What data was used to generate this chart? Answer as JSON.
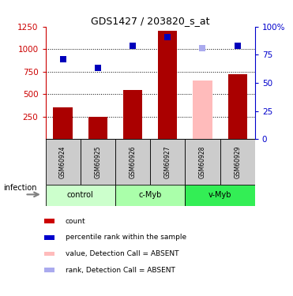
{
  "title": "GDS1427 / 203820_s_at",
  "samples": [
    "GSM60924",
    "GSM60925",
    "GSM60926",
    "GSM60927",
    "GSM60928",
    "GSM60929"
  ],
  "bar_values": [
    355,
    245,
    545,
    1200,
    650,
    720
  ],
  "bar_colors": [
    "#aa0000",
    "#aa0000",
    "#aa0000",
    "#aa0000",
    "#ffbbbb",
    "#aa0000"
  ],
  "rank_values": [
    890,
    795,
    1035,
    1130,
    1010,
    1040
  ],
  "rank_colors": [
    "#0000bb",
    "#0000bb",
    "#0000bb",
    "#0000bb",
    "#aaaaee",
    "#0000bb"
  ],
  "ylim_left": [
    0,
    1250
  ],
  "yticks_left": [
    250,
    500,
    750,
    1000,
    1250
  ],
  "yticks_right": [
    0,
    25,
    50,
    75,
    100
  ],
  "right_tick_labels": [
    "0",
    "25",
    "50",
    "75",
    "100%"
  ],
  "groups": [
    {
      "label": "control",
      "color": "#ccffcc",
      "start": 0,
      "end": 1
    },
    {
      "label": "c-Myb",
      "color": "#aaffaa",
      "start": 2,
      "end": 3
    },
    {
      "label": "v-Myb",
      "color": "#33ee55",
      "start": 4,
      "end": 5
    }
  ],
  "infection_label": "infection",
  "legend_items": [
    {
      "label": "count",
      "color": "#cc0000"
    },
    {
      "label": "percentile rank within the sample",
      "color": "#0000cc"
    },
    {
      "label": "value, Detection Call = ABSENT",
      "color": "#ffbbbb"
    },
    {
      "label": "rank, Detection Call = ABSENT",
      "color": "#aaaaee"
    }
  ],
  "dotted_yticks": [
    250,
    500,
    750,
    1000
  ],
  "bar_width": 0.55,
  "rank_marker_size": 6,
  "left_axis_color": "#cc0000",
  "right_axis_color": "#0000cc",
  "sample_box_color": "#cccccc",
  "chart_bg": "#ffffff"
}
